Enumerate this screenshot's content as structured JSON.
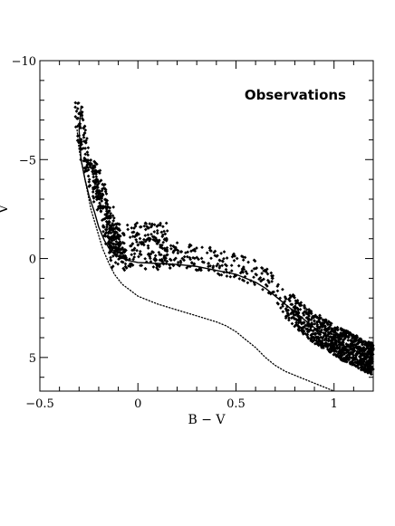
{
  "chart_data": {
    "type": "scatter",
    "title": "",
    "annotation": "Observations",
    "xlabel": "B − V",
    "ylabel": "V",
    "xlim": [
      -0.5,
      1.2
    ],
    "ylim": [
      -10,
      6.7
    ],
    "y_inverted": true,
    "x_ticks": [
      -0.5,
      0,
      0.5,
      1
    ],
    "x_tick_labels": [
      "−0.5",
      "0",
      "0.5",
      "1"
    ],
    "y_ticks": [
      -10,
      -5,
      0,
      5
    ],
    "y_tick_labels": [
      "−10",
      "−5",
      "0",
      "5"
    ],
    "grid": false,
    "colors": {
      "points": "#000000",
      "lines": "#000000",
      "frame": "#000000"
    },
    "lines": [
      {
        "style": "solid",
        "x": [
          -0.29,
          -0.3,
          -0.29,
          -0.27,
          -0.25,
          -0.22,
          -0.2,
          -0.17,
          -0.14,
          -0.1,
          -0.05,
          0.0,
          0.1,
          0.2,
          0.3,
          0.4,
          0.5,
          0.55,
          0.6,
          0.65,
          0.7,
          0.75,
          0.8,
          0.85,
          0.9,
          0.95,
          1.0,
          1.05,
          1.1,
          1.15,
          1.2
        ],
        "y": [
          -7.7,
          -6.5,
          -5.0,
          -4.0,
          -3.2,
          -2.3,
          -1.6,
          -0.9,
          -0.4,
          -0.1,
          0.1,
          0.2,
          0.25,
          0.3,
          0.4,
          0.6,
          0.8,
          1.0,
          1.2,
          1.5,
          1.9,
          2.3,
          2.7,
          3.1,
          3.5,
          3.8,
          4.1,
          4.4,
          4.6,
          4.9,
          5.1
        ]
      },
      {
        "style": "dotted",
        "x": [
          -0.31,
          -0.3,
          -0.28,
          -0.26,
          -0.24,
          -0.21,
          -0.18,
          -0.15,
          -0.12,
          -0.08,
          -0.04,
          0.0,
          0.05,
          0.1,
          0.2,
          0.3,
          0.4,
          0.45,
          0.5,
          0.55,
          0.6,
          0.65,
          0.7,
          0.75,
          0.8,
          0.85,
          0.9,
          0.95,
          1.0
        ],
        "y": [
          -6.5,
          -5.5,
          -4.5,
          -3.5,
          -2.5,
          -1.5,
          -0.5,
          0.2,
          0.8,
          1.3,
          1.6,
          1.9,
          2.1,
          2.3,
          2.6,
          2.9,
          3.2,
          3.4,
          3.7,
          4.1,
          4.5,
          5.0,
          5.4,
          5.7,
          5.9,
          6.1,
          6.3,
          6.5,
          6.7
        ]
      }
    ],
    "point_density": [
      {
        "region": "upper-branch",
        "x_range": [
          -0.31,
          -0.27
        ],
        "y_range": [
          -7.9,
          -5.0
        ],
        "approx_points": 60
      },
      {
        "region": "descending-branch",
        "x_range": [
          -0.27,
          -0.12
        ],
        "y_range": [
          -5.0,
          0.0
        ],
        "approx_points": 320
      },
      {
        "region": "gap-clump",
        "x_range": [
          -0.15,
          0.15
        ],
        "y_range": [
          -1.8,
          0.6
        ],
        "approx_points": 220
      },
      {
        "region": "horizontal-branch",
        "x_range": [
          0.1,
          0.7
        ],
        "y_range": [
          -1.3,
          0.9
        ],
        "approx_points": 200
      },
      {
        "region": "red-giants",
        "x_range": [
          0.7,
          1.2
        ],
        "y_range": [
          0.9,
          5.6
        ],
        "approx_points": 900
      }
    ]
  }
}
